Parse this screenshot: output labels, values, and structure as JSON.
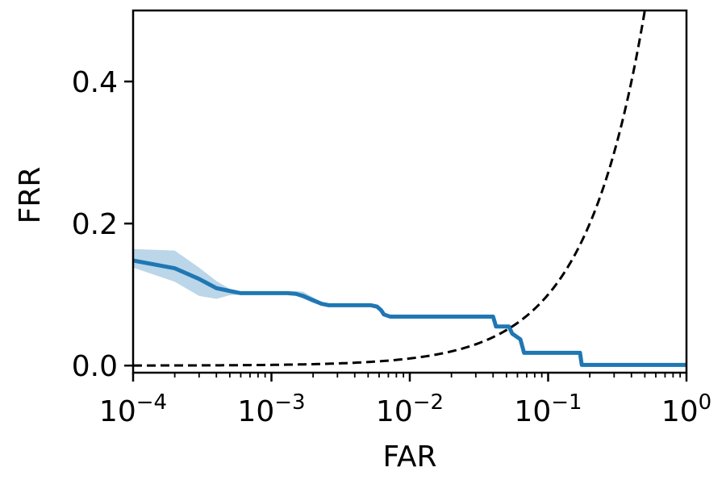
{
  "chart_data": {
    "type": "line",
    "title": "",
    "xlabel": "FAR",
    "ylabel": "FRR",
    "xscale": "log",
    "xlim": [
      0.0001,
      1
    ],
    "ylim": [
      -0.01,
      0.5
    ],
    "grid": false,
    "legend": "none",
    "x_ticks": [
      {
        "value": 0.0001,
        "base": "10",
        "exp": "−4"
      },
      {
        "value": 0.001,
        "base": "10",
        "exp": "−3"
      },
      {
        "value": 0.01,
        "base": "10",
        "exp": "−2"
      },
      {
        "value": 0.1,
        "base": "10",
        "exp": "−1"
      },
      {
        "value": 1,
        "base": "10",
        "exp": "0"
      }
    ],
    "y_ticks": [
      {
        "value": 0.0,
        "label": "0.0"
      },
      {
        "value": 0.2,
        "label": "0.2"
      },
      {
        "value": 0.4,
        "label": "0.4"
      }
    ],
    "series": [
      {
        "color": "#1f77b4",
        "band_color": "#1f77b4",
        "points": [
          [
            0.0001,
            0.148
          ],
          [
            0.0002,
            0.137
          ],
          [
            0.0003,
            0.122
          ],
          [
            0.0004,
            0.109
          ],
          [
            0.0005,
            0.105
          ],
          [
            0.0006,
            0.102
          ],
          [
            0.0008,
            0.102
          ],
          [
            0.001,
            0.102
          ],
          [
            0.0013,
            0.102
          ],
          [
            0.0015,
            0.101
          ],
          [
            0.0017,
            0.098
          ],
          [
            0.002,
            0.092
          ],
          [
            0.0023,
            0.087
          ],
          [
            0.0026,
            0.085
          ],
          [
            0.003,
            0.085
          ],
          [
            0.004,
            0.085
          ],
          [
            0.0052,
            0.085
          ],
          [
            0.0058,
            0.083
          ],
          [
            0.0062,
            0.078
          ],
          [
            0.0065,
            0.072
          ],
          [
            0.0072,
            0.069
          ],
          [
            0.008,
            0.069
          ],
          [
            0.01,
            0.069
          ],
          [
            0.02,
            0.069
          ],
          [
            0.03,
            0.069
          ],
          [
            0.04,
            0.069
          ],
          [
            0.042,
            0.055
          ],
          [
            0.052,
            0.055
          ],
          [
            0.055,
            0.045
          ],
          [
            0.063,
            0.037
          ],
          [
            0.067,
            0.018
          ],
          [
            0.1,
            0.018
          ],
          [
            0.17,
            0.018
          ],
          [
            0.175,
            0.001
          ],
          [
            0.3,
            0.001
          ],
          [
            1,
            0.001
          ]
        ],
        "band_upper": [
          [
            0.0001,
            0.164
          ],
          [
            0.0002,
            0.162
          ],
          [
            0.0003,
            0.138
          ],
          [
            0.0004,
            0.119
          ],
          [
            0.0005,
            0.108
          ],
          [
            0.0006,
            0.104
          ],
          [
            0.0008,
            0.104
          ],
          [
            0.001,
            0.104
          ],
          [
            0.0013,
            0.104
          ],
          [
            0.0015,
            0.105
          ],
          [
            0.0017,
            0.104
          ],
          [
            0.002,
            0.096
          ],
          [
            0.0023,
            0.089
          ],
          [
            0.0026,
            0.087
          ],
          [
            0.003,
            0.087
          ],
          [
            0.004,
            0.087
          ],
          [
            0.0052,
            0.087
          ],
          [
            0.0058,
            0.086
          ],
          [
            0.0062,
            0.081
          ],
          [
            0.0065,
            0.075
          ],
          [
            0.0072,
            0.071
          ],
          [
            0.008,
            0.071
          ],
          [
            0.01,
            0.071
          ],
          [
            0.02,
            0.071
          ],
          [
            0.03,
            0.071
          ],
          [
            0.04,
            0.071
          ],
          [
            0.042,
            0.057
          ],
          [
            0.052,
            0.057
          ],
          [
            0.055,
            0.047
          ],
          [
            0.063,
            0.039
          ],
          [
            0.067,
            0.02
          ],
          [
            0.1,
            0.02
          ],
          [
            0.17,
            0.02
          ],
          [
            0.175,
            0.003
          ],
          [
            0.3,
            0.003
          ],
          [
            1,
            0.003
          ]
        ],
        "band_lower": [
          [
            0.0001,
            0.138
          ],
          [
            0.0002,
            0.118
          ],
          [
            0.0003,
            0.098
          ],
          [
            0.0004,
            0.094
          ],
          [
            0.0005,
            0.099
          ],
          [
            0.0006,
            0.1
          ],
          [
            0.0008,
            0.1
          ],
          [
            0.001,
            0.1
          ],
          [
            0.0013,
            0.1
          ],
          [
            0.0015,
            0.099
          ],
          [
            0.0017,
            0.094
          ],
          [
            0.002,
            0.088
          ],
          [
            0.0023,
            0.085
          ],
          [
            0.0026,
            0.083
          ],
          [
            0.003,
            0.083
          ],
          [
            0.004,
            0.083
          ],
          [
            0.0052,
            0.083
          ],
          [
            0.0058,
            0.081
          ],
          [
            0.0062,
            0.076
          ],
          [
            0.0065,
            0.07
          ],
          [
            0.0072,
            0.067
          ],
          [
            0.008,
            0.067
          ],
          [
            0.01,
            0.067
          ],
          [
            0.02,
            0.067
          ],
          [
            0.03,
            0.067
          ],
          [
            0.04,
            0.067
          ],
          [
            0.042,
            0.053
          ],
          [
            0.052,
            0.053
          ],
          [
            0.055,
            0.043
          ],
          [
            0.063,
            0.035
          ],
          [
            0.067,
            0.016
          ],
          [
            0.1,
            0.016
          ],
          [
            0.17,
            0.016
          ],
          [
            0.175,
            0.0
          ],
          [
            0.3,
            0.0
          ],
          [
            1,
            0.0
          ]
        ]
      },
      {
        "color": "#000000",
        "style": "dashed",
        "function": "y = x",
        "points": [
          [
            0.0001,
            0.0001
          ],
          [
            0.001,
            0.001
          ],
          [
            0.01,
            0.01
          ],
          [
            0.02,
            0.02
          ],
          [
            0.05,
            0.05
          ],
          [
            0.1,
            0.1
          ],
          [
            0.2,
            0.2
          ],
          [
            0.3,
            0.3
          ],
          [
            0.4,
            0.4
          ],
          [
            0.5,
            0.5
          ]
        ]
      }
    ]
  }
}
